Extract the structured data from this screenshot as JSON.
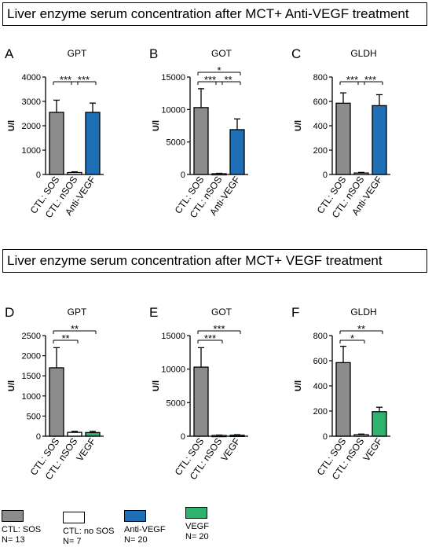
{
  "titles": {
    "top": "Liver enzyme serum concentration after MCT+ Anti-VEGF treatment",
    "bottom": "Liver enzyme serum concentration after MCT+ VEGF treatment"
  },
  "colors": {
    "sos": "#8c8c8c",
    "nsos": "#ffffff",
    "antivegf": "#1f6fb6",
    "vegf": "#2db36e"
  },
  "chart_data": [
    {
      "type": "bar",
      "panel": "A",
      "title": "GPT",
      "ylabel": "U/l",
      "categories": [
        "CTL: SOS",
        "CTL: nSOS",
        "Anti-VEGF"
      ],
      "values": [
        2550,
        80,
        2550
      ],
      "errors": [
        500,
        30,
        380
      ],
      "colors": [
        "sos",
        "nsos",
        "antivegf"
      ],
      "ylim": [
        0,
        4000
      ],
      "ticks": [
        0,
        1000,
        2000,
        3000,
        4000
      ],
      "significance": [
        {
          "from": 0,
          "to": 1,
          "label": "***",
          "level": 0
        },
        {
          "from": 1,
          "to": 2,
          "label": "***",
          "level": 0
        }
      ]
    },
    {
      "type": "bar",
      "panel": "B",
      "title": "GOT",
      "ylabel": "U/l",
      "categories": [
        "CTL: SOS",
        "CTL: nSOS",
        "Anti-VEGF"
      ],
      "values": [
        10300,
        120,
        6900
      ],
      "errors": [
        2900,
        60,
        1650
      ],
      "colors": [
        "sos",
        "nsos",
        "antivegf"
      ],
      "ylim": [
        0,
        15000
      ],
      "ticks": [
        0,
        5000,
        10000,
        15000
      ],
      "significance": [
        {
          "from": 0,
          "to": 1,
          "label": "***",
          "level": 0
        },
        {
          "from": 1,
          "to": 2,
          "label": "**",
          "level": 0
        },
        {
          "from": 0,
          "to": 2,
          "label": "*",
          "level": 1
        }
      ]
    },
    {
      "type": "bar",
      "panel": "C",
      "title": "GLDH",
      "ylabel": "U/l",
      "categories": [
        "CTL: SOS",
        "CTL: nSOS",
        "Anti-VEGF"
      ],
      "values": [
        585,
        12,
        565
      ],
      "errors": [
        85,
        5,
        90
      ],
      "colors": [
        "sos",
        "nsos",
        "antivegf"
      ],
      "ylim": [
        0,
        800
      ],
      "ticks": [
        0,
        200,
        400,
        600,
        800
      ],
      "significance": [
        {
          "from": 0,
          "to": 1,
          "label": "***",
          "level": 0
        },
        {
          "from": 1,
          "to": 2,
          "label": "***",
          "level": 0
        }
      ]
    },
    {
      "type": "bar",
      "panel": "D",
      "title": "GPT",
      "ylabel": "U/l",
      "categories": [
        "CTL: SOS",
        "CTL: nSOS",
        "VEGF"
      ],
      "values": [
        1700,
        95,
        90
      ],
      "errors": [
        500,
        25,
        30
      ],
      "colors": [
        "sos",
        "nsos",
        "vegf"
      ],
      "ylim": [
        0,
        2500
      ],
      "ticks": [
        0,
        500,
        1000,
        1500,
        2000,
        2500
      ],
      "significance": [
        {
          "from": 0,
          "to": 1,
          "label": "**",
          "level": 0
        },
        {
          "from": 0,
          "to": 2,
          "label": "**",
          "level": 1
        }
      ]
    },
    {
      "type": "bar",
      "panel": "E",
      "title": "GOT",
      "ylabel": "U/l",
      "categories": [
        "CTL: SOS",
        "CTL: nSOS",
        "VEGF"
      ],
      "values": [
        10300,
        110,
        140
      ],
      "errors": [
        2900,
        60,
        80
      ],
      "colors": [
        "sos",
        "nsos",
        "vegf"
      ],
      "ylim": [
        0,
        15000
      ],
      "ticks": [
        0,
        5000,
        10000,
        15000
      ],
      "significance": [
        {
          "from": 0,
          "to": 1,
          "label": "***",
          "level": 0
        },
        {
          "from": 0,
          "to": 2,
          "label": "***",
          "level": 1
        }
      ]
    },
    {
      "type": "bar",
      "panel": "F",
      "title": "GLDH",
      "ylabel": "U/l",
      "categories": [
        "CTL: SOS",
        "CTL: nSOS",
        "VEGF"
      ],
      "values": [
        585,
        12,
        195
      ],
      "errors": [
        130,
        5,
        35
      ],
      "colors": [
        "sos",
        "nsos",
        "vegf"
      ],
      "ylim": [
        0,
        800
      ],
      "ticks": [
        0,
        200,
        400,
        600,
        800
      ],
      "significance": [
        {
          "from": 0,
          "to": 1,
          "label": "*",
          "level": 0
        },
        {
          "from": 0,
          "to": 2,
          "label": "**",
          "level": 1
        }
      ]
    }
  ],
  "legend": [
    {
      "label": "CTL: SOS",
      "n": "N= 13",
      "color": "sos"
    },
    {
      "label": "CTL: no SOS",
      "n": "N= 7",
      "color": "nsos"
    },
    {
      "label": "Anti-VEGF",
      "n": "N= 20",
      "color": "antivegf"
    },
    {
      "label": "VEGF",
      "n": "N= 20",
      "color": "vegf"
    }
  ]
}
